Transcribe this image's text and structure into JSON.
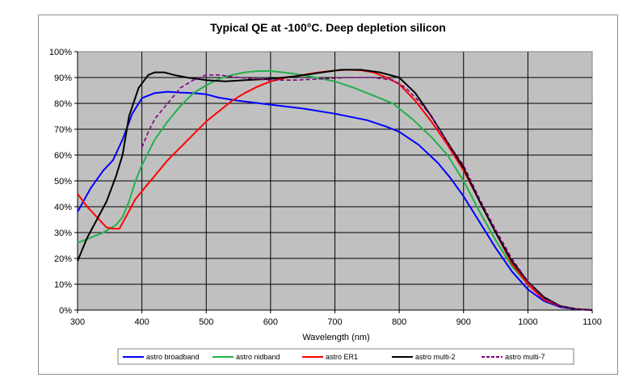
{
  "chart_data": {
    "type": "line",
    "title": "Typical QE at -100°C. Deep depletion silicon",
    "xlabel": "Wavelength (nm)",
    "ylabel": "",
    "xlim": [
      300,
      1100
    ],
    "ylim": [
      0,
      100
    ],
    "x_ticks": [
      "300",
      "400",
      "500",
      "600",
      "700",
      "800",
      "900",
      "1000",
      "1100"
    ],
    "y_ticks": [
      "0%",
      "10%",
      "20%",
      "30%",
      "40%",
      "50%",
      "60%",
      "70%",
      "80%",
      "90%",
      "100%"
    ],
    "grid": true,
    "plot_background": "#c0c0c0",
    "legend_position": "bottom",
    "series": [
      {
        "name": "astro broadband",
        "color": "#0000ff",
        "dash": "solid",
        "points": [
          [
            300,
            38
          ],
          [
            320,
            47
          ],
          [
            340,
            54
          ],
          [
            355,
            58
          ],
          [
            370,
            66
          ],
          [
            385,
            76
          ],
          [
            400,
            82
          ],
          [
            420,
            84
          ],
          [
            440,
            84.5
          ],
          [
            460,
            84.2
          ],
          [
            480,
            84
          ],
          [
            500,
            83.5
          ],
          [
            520,
            82.2
          ],
          [
            550,
            81
          ],
          [
            600,
            79.5
          ],
          [
            650,
            78
          ],
          [
            700,
            76
          ],
          [
            750,
            73.5
          ],
          [
            780,
            71
          ],
          [
            800,
            69
          ],
          [
            830,
            64
          ],
          [
            860,
            57
          ],
          [
            880,
            51
          ],
          [
            900,
            44
          ],
          [
            925,
            34
          ],
          [
            950,
            24
          ],
          [
            975,
            15
          ],
          [
            1000,
            8
          ],
          [
            1025,
            3.5
          ],
          [
            1050,
            1.2
          ],
          [
            1075,
            0.3
          ],
          [
            1100,
            0
          ]
        ]
      },
      {
        "name": "astro nidband",
        "color": "#22b14c",
        "dash": "solid",
        "points": [
          [
            300,
            26
          ],
          [
            320,
            28
          ],
          [
            340,
            30
          ],
          [
            360,
            33
          ],
          [
            370,
            36
          ],
          [
            380,
            42
          ],
          [
            390,
            50
          ],
          [
            400,
            56
          ],
          [
            420,
            66
          ],
          [
            440,
            73
          ],
          [
            460,
            79
          ],
          [
            480,
            84
          ],
          [
            500,
            87
          ],
          [
            520,
            89.5
          ],
          [
            540,
            91
          ],
          [
            560,
            92
          ],
          [
            580,
            92.5
          ],
          [
            600,
            92.5
          ],
          [
            620,
            92
          ],
          [
            650,
            91
          ],
          [
            680,
            89.5
          ],
          [
            700,
            88.5
          ],
          [
            730,
            86
          ],
          [
            760,
            83
          ],
          [
            790,
            80
          ],
          [
            820,
            74
          ],
          [
            850,
            67
          ],
          [
            875,
            60
          ],
          [
            900,
            50
          ],
          [
            925,
            38
          ],
          [
            950,
            27
          ],
          [
            975,
            17
          ],
          [
            1000,
            10
          ],
          [
            1025,
            4
          ],
          [
            1050,
            1.5
          ],
          [
            1075,
            0.4
          ],
          [
            1100,
            0
          ]
        ]
      },
      {
        "name": "astro ER1",
        "color": "#ff0000",
        "dash": "solid",
        "points": [
          [
            300,
            45
          ],
          [
            315,
            40
          ],
          [
            330,
            36
          ],
          [
            345,
            32
          ],
          [
            355,
            31.5
          ],
          [
            365,
            31.5
          ],
          [
            375,
            36
          ],
          [
            390,
            43
          ],
          [
            410,
            49
          ],
          [
            420,
            52
          ],
          [
            440,
            58
          ],
          [
            460,
            63
          ],
          [
            480,
            68
          ],
          [
            500,
            73
          ],
          [
            520,
            77
          ],
          [
            540,
            81
          ],
          [
            560,
            84
          ],
          [
            580,
            86.5
          ],
          [
            600,
            88.5
          ],
          [
            625,
            90
          ],
          [
            650,
            91
          ],
          [
            675,
            92
          ],
          [
            700,
            92.7
          ],
          [
            720,
            93
          ],
          [
            740,
            92.8
          ],
          [
            760,
            92
          ],
          [
            780,
            90
          ],
          [
            800,
            87.5
          ],
          [
            825,
            81
          ],
          [
            850,
            73
          ],
          [
            875,
            64
          ],
          [
            900,
            54
          ],
          [
            925,
            42
          ],
          [
            950,
            30
          ],
          [
            975,
            18
          ],
          [
            1000,
            10
          ],
          [
            1025,
            4
          ],
          [
            1050,
            1.5
          ],
          [
            1075,
            0.4
          ],
          [
            1100,
            0
          ]
        ]
      },
      {
        "name": "astro multi-2",
        "color": "#000000",
        "dash": "solid",
        "points": [
          [
            300,
            19
          ],
          [
            315,
            28
          ],
          [
            330,
            35
          ],
          [
            345,
            42
          ],
          [
            360,
            52
          ],
          [
            370,
            60
          ],
          [
            380,
            75
          ],
          [
            395,
            86
          ],
          [
            410,
            91
          ],
          [
            420,
            92
          ],
          [
            435,
            92
          ],
          [
            450,
            91
          ],
          [
            470,
            90
          ],
          [
            500,
            89
          ],
          [
            530,
            88.5
          ],
          [
            560,
            89
          ],
          [
            600,
            89.5
          ],
          [
            640,
            90.5
          ],
          [
            680,
            92
          ],
          [
            710,
            93
          ],
          [
            740,
            93
          ],
          [
            770,
            92
          ],
          [
            800,
            90
          ],
          [
            825,
            84
          ],
          [
            850,
            75
          ],
          [
            875,
            65
          ],
          [
            900,
            55
          ],
          [
            925,
            42
          ],
          [
            950,
            30
          ],
          [
            975,
            19
          ],
          [
            1000,
            11
          ],
          [
            1025,
            5
          ],
          [
            1050,
            1.6
          ],
          [
            1075,
            0.4
          ],
          [
            1100,
            0
          ]
        ]
      },
      {
        "name": "astro multi-7",
        "color": "#7f007f",
        "dash": "dashed",
        "points": [
          [
            400,
            63
          ],
          [
            410,
            69
          ],
          [
            420,
            74
          ],
          [
            440,
            80
          ],
          [
            460,
            86
          ],
          [
            480,
            89
          ],
          [
            500,
            91
          ],
          [
            520,
            91
          ],
          [
            540,
            90.3
          ],
          [
            560,
            89.8
          ],
          [
            600,
            89
          ],
          [
            640,
            89
          ],
          [
            680,
            89.5
          ],
          [
            720,
            90
          ],
          [
            760,
            90
          ],
          [
            790,
            89
          ],
          [
            810,
            86
          ],
          [
            830,
            81
          ],
          [
            850,
            75
          ],
          [
            875,
            65
          ],
          [
            900,
            56
          ],
          [
            925,
            43
          ],
          [
            950,
            31
          ],
          [
            975,
            20
          ],
          [
            1000,
            11
          ],
          [
            1025,
            4.5
          ],
          [
            1050,
            1.5
          ],
          [
            1075,
            0.4
          ],
          [
            1100,
            0
          ]
        ]
      }
    ]
  }
}
